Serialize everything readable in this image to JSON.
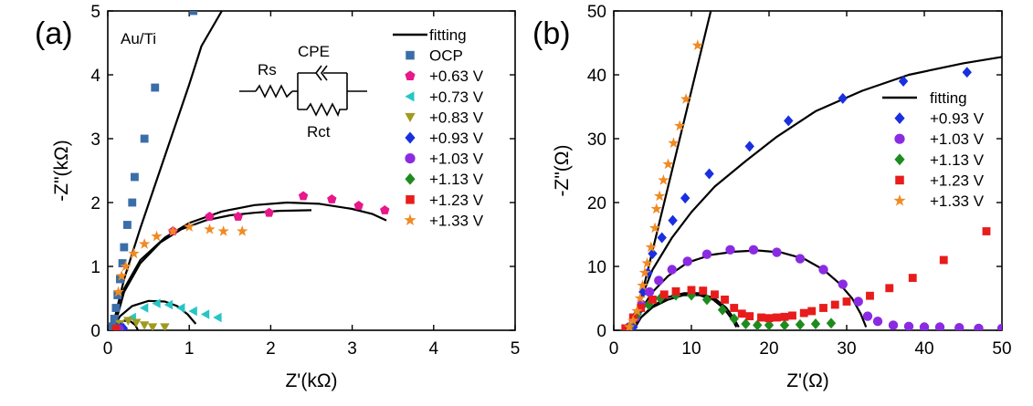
{
  "panels": [
    {
      "panel_label": "(a)",
      "sample_label": "Au/Ti",
      "circuit": {
        "rs_label": "Rs",
        "cpe_label": "CPE",
        "rct_label": "Rct"
      }
    },
    {
      "panel_label": "(b)"
    }
  ],
  "chart_data": [
    {
      "type": "scatter",
      "xlabel": "Z'(kΩ)",
      "ylabel": "-Z\"(kΩ)",
      "xlim": [
        0,
        5
      ],
      "ylim": [
        0,
        5
      ],
      "xticks": [
        0,
        1,
        2,
        3,
        4,
        5
      ],
      "yticks": [
        0,
        1,
        2,
        3,
        4,
        5
      ],
      "grid": false,
      "legend_position": "top-right",
      "series": [
        {
          "name": "fitting",
          "kind": "line",
          "color": "#000000",
          "marker": "line"
        },
        {
          "name": "OCP",
          "color": "#3b6ea8",
          "marker": "square",
          "points": [
            [
              0.06,
              0.06
            ],
            [
              0.08,
              0.18
            ],
            [
              0.1,
              0.35
            ],
            [
              0.12,
              0.55
            ],
            [
              0.15,
              0.8
            ],
            [
              0.18,
              1.05
            ],
            [
              0.2,
              1.3
            ],
            [
              0.24,
              1.65
            ],
            [
              0.3,
              2.0
            ],
            [
              0.33,
              2.4
            ],
            [
              0.45,
              3.0
            ],
            [
              0.58,
              3.8
            ],
            [
              1.05,
              5.0
            ]
          ]
        },
        {
          "name": "+0.63 V",
          "color": "#e8178a",
          "marker": "pentagon",
          "points": [
            [
              0.8,
              1.55
            ],
            [
              1.25,
              1.78
            ],
            [
              1.6,
              1.78
            ],
            [
              1.98,
              1.84
            ],
            [
              2.4,
              2.1
            ],
            [
              2.75,
              2.05
            ],
            [
              3.08,
              1.95
            ],
            [
              3.4,
              1.88
            ]
          ]
        },
        {
          "name": "+0.73 V",
          "color": "#26c6c6",
          "marker": "triangle-left",
          "points": [
            [
              0.3,
              0.2
            ],
            [
              0.45,
              0.35
            ],
            [
              0.6,
              0.42
            ],
            [
              0.75,
              0.4
            ],
            [
              0.9,
              0.35
            ],
            [
              1.05,
              0.3
            ],
            [
              1.2,
              0.25
            ],
            [
              1.35,
              0.2
            ]
          ]
        },
        {
          "name": "+0.83 V",
          "color": "#a09a20",
          "marker": "triangle-down",
          "points": [
            [
              0.15,
              0.1
            ],
            [
              0.25,
              0.15
            ],
            [
              0.35,
              0.12
            ],
            [
              0.45,
              0.08
            ],
            [
              0.55,
              0.05
            ],
            [
              0.7,
              0.05
            ]
          ]
        },
        {
          "name": "+0.93 V",
          "color": "#1a2fe0",
          "marker": "diamond",
          "points": [
            [
              0.12,
              0.03
            ],
            [
              0.16,
              0.04
            ],
            [
              0.19,
              0.03
            ]
          ]
        },
        {
          "name": "+1.03 V",
          "color": "#8a2be2",
          "marker": "circle",
          "points": [
            [
              0.11,
              0.02
            ],
            [
              0.14,
              0.02
            ]
          ]
        },
        {
          "name": "+1.13 V",
          "color": "#1e8b1e",
          "marker": "diamond",
          "points": [
            [
              0.1,
              0.02
            ]
          ]
        },
        {
          "name": "+1.23 V",
          "color": "#e81c1c",
          "marker": "square",
          "points": [
            [
              0.1,
              0.02
            ]
          ]
        },
        {
          "name": "+1.33 V",
          "color": "#f08a24",
          "marker": "star",
          "points": [
            [
              0.13,
              0.6
            ],
            [
              0.17,
              0.85
            ],
            [
              0.22,
              1.0
            ],
            [
              0.32,
              1.2
            ],
            [
              0.45,
              1.35
            ],
            [
              0.6,
              1.47
            ],
            [
              0.8,
              1.55
            ],
            [
              1.0,
              1.62
            ],
            [
              1.25,
              1.58
            ],
            [
              1.42,
              1.55
            ],
            [
              1.65,
              1.55
            ]
          ]
        }
      ],
      "fit_curves": [
        [
          [
            0.05,
            0
          ],
          [
            0.2,
            0.8
          ],
          [
            0.4,
            1.6
          ],
          [
            0.6,
            2.35
          ],
          [
            0.8,
            3.1
          ],
          [
            1.0,
            3.85
          ],
          [
            1.15,
            4.45
          ],
          [
            1.4,
            5.0
          ]
        ],
        [
          [
            0.07,
            0
          ],
          [
            0.2,
            0.6
          ],
          [
            0.4,
            1.05
          ],
          [
            0.65,
            1.38
          ],
          [
            0.9,
            1.58
          ],
          [
            1.2,
            1.72
          ],
          [
            1.5,
            1.8
          ],
          [
            1.8,
            1.84
          ],
          [
            2.1,
            1.87
          ],
          [
            2.5,
            1.88
          ]
        ],
        [
          [
            0.07,
            0
          ],
          [
            0.2,
            0.65
          ],
          [
            0.4,
            1.1
          ],
          [
            0.7,
            1.45
          ],
          [
            1.0,
            1.68
          ],
          [
            1.4,
            1.86
          ],
          [
            1.8,
            1.96
          ],
          [
            2.2,
            2.0
          ],
          [
            2.6,
            1.98
          ],
          [
            3.0,
            1.9
          ],
          [
            3.25,
            1.82
          ],
          [
            3.42,
            1.72
          ]
        ],
        [
          [
            0.05,
            0
          ],
          [
            0.15,
            0.22
          ],
          [
            0.3,
            0.38
          ],
          [
            0.5,
            0.46
          ],
          [
            0.7,
            0.45
          ],
          [
            0.85,
            0.38
          ],
          [
            0.98,
            0.25
          ],
          [
            1.08,
            0.1
          ]
        ],
        [
          [
            0.05,
            0
          ],
          [
            0.12,
            0.1
          ],
          [
            0.2,
            0.15
          ],
          [
            0.28,
            0.14
          ],
          [
            0.34,
            0.08
          ],
          [
            0.37,
            0.0
          ]
        ]
      ]
    },
    {
      "type": "scatter",
      "xlabel": "Z'(Ω)",
      "ylabel": "-Z\"(Ω)",
      "xlim": [
        0,
        50
      ],
      "ylim": [
        0,
        50
      ],
      "xticks": [
        0,
        10,
        20,
        30,
        40,
        50
      ],
      "yticks": [
        0,
        10,
        20,
        30,
        40,
        50
      ],
      "grid": false,
      "legend_position": "right",
      "series": [
        {
          "name": "fitting",
          "kind": "line",
          "color": "#000000",
          "marker": "line"
        },
        {
          "name": "+0.93 V",
          "color": "#1a2fe0",
          "marker": "diamond",
          "points": [
            [
              2.5,
              0.5
            ],
            [
              3.2,
              3
            ],
            [
              3.8,
              6
            ],
            [
              4.4,
              9
            ],
            [
              5,
              12
            ],
            [
              6.2,
              14.5
            ],
            [
              7.6,
              17.2
            ],
            [
              9.2,
              20.7
            ],
            [
              12.3,
              24.5
            ],
            [
              17.5,
              28.8
            ],
            [
              22.5,
              32.8
            ],
            [
              29.5,
              36.3
            ],
            [
              37.3,
              39
            ],
            [
              45.5,
              40.4
            ]
          ]
        },
        {
          "name": "+1.03 V",
          "color": "#8a2be2",
          "marker": "circle",
          "points": [
            [
              2,
              0.5
            ],
            [
              2.8,
              2
            ],
            [
              3.6,
              4
            ],
            [
              4.6,
              6
            ],
            [
              5.8,
              7.8
            ],
            [
              7.5,
              9.5
            ],
            [
              9.5,
              10.8
            ],
            [
              12,
              11.9
            ],
            [
              15,
              12.6
            ],
            [
              18,
              12.6
            ],
            [
              21,
              12.2
            ],
            [
              24,
              11.2
            ],
            [
              27,
              9.5
            ],
            [
              29.5,
              7.2
            ],
            [
              31.5,
              4.5
            ],
            [
              32.7,
              2.2
            ],
            [
              34,
              1.4
            ],
            [
              36,
              0.8
            ],
            [
              38,
              0.6
            ],
            [
              40,
              0.5
            ],
            [
              42,
              0.5
            ],
            [
              44.5,
              0.4
            ],
            [
              47,
              0.3
            ],
            [
              50,
              0.3
            ]
          ]
        },
        {
          "name": "+1.13 V",
          "color": "#1e8b1e",
          "marker": "diamond",
          "points": [
            [
              2,
              0.5
            ],
            [
              3,
              2.5
            ],
            [
              4.5,
              4
            ],
            [
              6,
              5
            ],
            [
              8,
              5.5
            ],
            [
              10,
              5.5
            ],
            [
              12,
              4.8
            ],
            [
              14,
              3.2
            ],
            [
              15.5,
              1.8
            ],
            [
              17,
              1.0
            ],
            [
              18.5,
              0.8
            ],
            [
              20,
              0.8
            ],
            [
              22,
              0.8
            ],
            [
              24,
              0.9
            ],
            [
              26,
              1.0
            ],
            [
              28,
              1.1
            ]
          ]
        },
        {
          "name": "+1.23 V",
          "color": "#e81c1c",
          "marker": "square",
          "points": [
            [
              1.5,
              0.3
            ],
            [
              2.5,
              2
            ],
            [
              3.5,
              3.5
            ],
            [
              5,
              4.8
            ],
            [
              6.5,
              5.6
            ],
            [
              8,
              6.1
            ],
            [
              10,
              6.3
            ],
            [
              11.5,
              6.2
            ],
            [
              13,
              5.6
            ],
            [
              14.3,
              4.8
            ],
            [
              15.5,
              3.5
            ],
            [
              16.5,
              2.6
            ],
            [
              17.5,
              2.2
            ],
            [
              19,
              2.0
            ],
            [
              20,
              1.9
            ],
            [
              21,
              2.0
            ],
            [
              22,
              2.1
            ],
            [
              23,
              2.3
            ],
            [
              24.5,
              2.7
            ],
            [
              25.5,
              3.0
            ],
            [
              27,
              3.5
            ],
            [
              28.5,
              4.0
            ],
            [
              30,
              4.5
            ],
            [
              33,
              5.4
            ],
            [
              35.5,
              6.6
            ],
            [
              38.5,
              8.2
            ],
            [
              42.5,
              11.0
            ],
            [
              48,
              15.5
            ]
          ]
        },
        {
          "name": "+1.33 V",
          "color": "#f08a24",
          "marker": "star",
          "points": [
            [
              2,
              0.5
            ],
            [
              2.5,
              1.5
            ],
            [
              3,
              3
            ],
            [
              3.4,
              5
            ],
            [
              3.7,
              7
            ],
            [
              4,
              9
            ],
            [
              4.3,
              10.5
            ],
            [
              4.8,
              13
            ],
            [
              5.3,
              16
            ],
            [
              5.5,
              19
            ],
            [
              5.9,
              21
            ],
            [
              6.4,
              23.5
            ],
            [
              7,
              26
            ],
            [
              7.7,
              29.3
            ],
            [
              8.5,
              32
            ],
            [
              9.3,
              36.2
            ],
            [
              10.8,
              44.6
            ]
          ]
        }
      ],
      "fit_curves": [
        [
          [
            2.5,
            0
          ],
          [
            4.5,
            10
          ],
          [
            6.5,
            20
          ],
          [
            8.5,
            30
          ],
          [
            10.5,
            40
          ],
          [
            12.5,
            50
          ]
        ],
        [
          [
            2.5,
            0
          ],
          [
            3.5,
            5
          ],
          [
            5,
            9.5
          ],
          [
            7.5,
            14.5
          ],
          [
            10,
            18.5
          ],
          [
            13,
            22.5
          ],
          [
            17,
            26.5
          ],
          [
            21,
            30.3
          ],
          [
            26,
            34.3
          ],
          [
            32,
            37.5
          ],
          [
            38,
            40
          ],
          [
            45,
            41.8
          ],
          [
            50,
            42.8
          ]
        ],
        [
          [
            2.5,
            0
          ],
          [
            3.5,
            3.2
          ],
          [
            5,
            6.0
          ],
          [
            7,
            8.5
          ],
          [
            9.5,
            10.6
          ],
          [
            12.5,
            11.8
          ],
          [
            15.5,
            12.3
          ],
          [
            18.5,
            12.5
          ],
          [
            21.5,
            12.2
          ],
          [
            24.5,
            11.2
          ],
          [
            27,
            9.5
          ],
          [
            29,
            7.4
          ],
          [
            30.7,
            5.0
          ],
          [
            31.8,
            2.6
          ],
          [
            32.5,
            0.5
          ]
        ],
        [
          [
            2.5,
            0
          ],
          [
            3.5,
            2
          ],
          [
            5,
            3.6
          ],
          [
            7,
            4.8
          ],
          [
            9,
            5.5
          ],
          [
            11,
            5.5
          ],
          [
            12.8,
            4.8
          ],
          [
            14.2,
            3.4
          ],
          [
            15.2,
            1.8
          ],
          [
            15.8,
            0.5
          ]
        ],
        [
          [
            2.5,
            0
          ],
          [
            3.5,
            2
          ],
          [
            5,
            3.8
          ],
          [
            7,
            5.2
          ],
          [
            9,
            5.8
          ],
          [
            11,
            5.8
          ],
          [
            13,
            5.0
          ],
          [
            14.5,
            3.5
          ],
          [
            15.5,
            1.8
          ],
          [
            16.1,
            0.5
          ]
        ]
      ]
    }
  ]
}
